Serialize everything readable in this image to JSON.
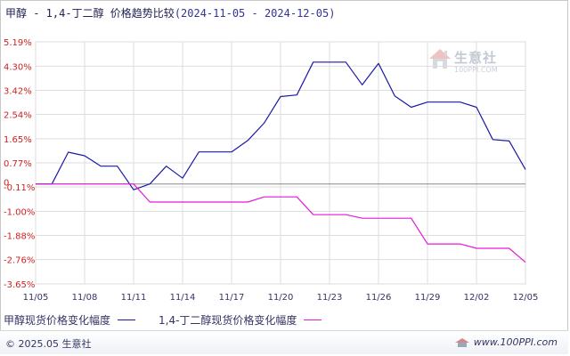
{
  "header": {
    "title": "甲醇 - 1,4-丁二醇 价格趋势比较",
    "date_range": "(2024-11-05 - 2024-12-05)"
  },
  "watermark": {
    "brand": "生意社",
    "url": "100PPI.COM"
  },
  "footer": {
    "copyright": "© 2025.05 生意社",
    "site": "www.100PPI.com"
  },
  "colors": {
    "series_1": "#1a1aa6",
    "series_2": "#e619d9",
    "grid": "#dddddd",
    "zero_line": "#888888",
    "axis_text": "#cc2222",
    "x_text": "#333366"
  },
  "chart_data": {
    "type": "line",
    "title": "甲醇 - 1,4-丁二醇 价格趋势比较",
    "subtitle": "(2024-11-05 - 2024-12-05)",
    "xlabel": "",
    "ylabel": "",
    "x": [
      "11/05",
      "11/06",
      "11/07",
      "11/08",
      "11/09",
      "11/10",
      "11/11",
      "11/12",
      "11/13",
      "11/14",
      "11/15",
      "11/16",
      "11/17",
      "11/18",
      "11/19",
      "11/20",
      "11/21",
      "11/22",
      "11/23",
      "11/24",
      "11/25",
      "11/26",
      "11/27",
      "11/28",
      "11/29",
      "11/30",
      "12/01",
      "12/02",
      "12/03",
      "12/04",
      "12/05"
    ],
    "x_ticks": [
      "11/05",
      "11/08",
      "11/11",
      "11/14",
      "11/17",
      "11/20",
      "11/23",
      "11/26",
      "11/29",
      "12/02",
      "12/05"
    ],
    "y_ticks": [
      "5.19%",
      "4.30%",
      "3.42%",
      "2.54%",
      "1.65%",
      "0.77%",
      "-0.11%",
      "-1.00%",
      "-1.88%",
      "-2.76%",
      "-3.65%"
    ],
    "y_tick_values": [
      5.19,
      4.3,
      3.42,
      2.54,
      1.65,
      0.77,
      -0.11,
      -1.0,
      -1.88,
      -2.76,
      -3.65
    ],
    "ylim": [
      -3.65,
      5.19
    ],
    "zero_label": "0",
    "grid": true,
    "legend_position": "bottom",
    "series": [
      {
        "name": "甲醇现货价格变化幅度",
        "color": "#1a1aa6",
        "values": [
          0.0,
          0.0,
          1.16,
          1.03,
          0.65,
          0.65,
          -0.21,
          0.0,
          0.65,
          0.21,
          1.17,
          1.17,
          1.17,
          1.59,
          2.23,
          3.19,
          3.25,
          4.45,
          4.45,
          4.45,
          3.62,
          4.4,
          3.21,
          2.8,
          2.99,
          2.99,
          2.99,
          2.8,
          1.62,
          1.57,
          0.53
        ]
      },
      {
        "name": "1,4-丁二醇现货价格变化幅度",
        "color": "#e619d9",
        "values": [
          0.0,
          0.0,
          0.0,
          0.0,
          0.0,
          0.0,
          0.0,
          -0.66,
          -0.66,
          -0.66,
          -0.66,
          -0.66,
          -0.66,
          -0.66,
          -0.47,
          -0.47,
          -0.47,
          -1.12,
          -1.12,
          -1.12,
          -1.25,
          -1.25,
          -1.25,
          -1.25,
          -2.19,
          -2.19,
          -2.19,
          -2.35,
          -2.35,
          -2.35,
          -2.86
        ]
      }
    ]
  }
}
